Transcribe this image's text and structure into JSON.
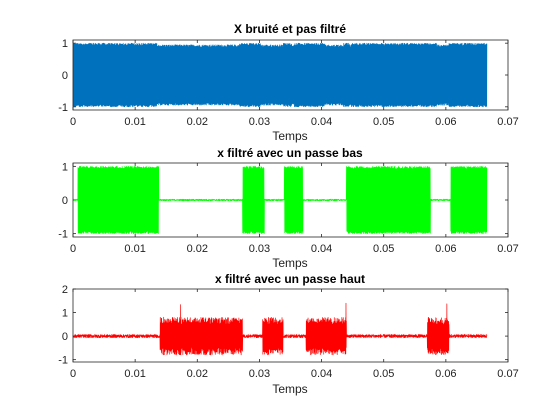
{
  "chart_data": [
    {
      "type": "line",
      "title": "X bruité et pas filtré",
      "xlabel": "Temps",
      "ylabel": "",
      "xlim": [
        0,
        0.07
      ],
      "ylim": [
        -1.1,
        1.1
      ],
      "x_ticks": [
        "0",
        "0.01",
        "0.02",
        "0.03",
        "0.04",
        "0.05",
        "0.06",
        "0.07"
      ],
      "y_ticks": [
        "1",
        "0",
        "-1"
      ],
      "color": "#0072bd",
      "grid": false,
      "series": [
        {
          "signal": "noisy tone bursts across whole duration",
          "x_range": [
            0,
            0.0666
          ],
          "dense_segments": [
            [
              0.0135,
              0.0268
            ],
            [
              0.0302,
              0.0338
            ],
            [
              0.0352,
              0.0356
            ],
            [
              0.0405,
              0.0435
            ],
            [
              0.0445,
              0.0448
            ],
            [
              0.0585,
              0.0605
            ]
          ],
          "amplitude_sparse": 1.0,
          "amplitude_dense": 0.95
        }
      ]
    },
    {
      "type": "line",
      "title": "x filtré avec un passe bas",
      "xlabel": "Temps",
      "ylabel": "",
      "xlim": [
        0,
        0.07
      ],
      "ylim": [
        -1.1,
        1.1
      ],
      "x_ticks": [
        "0",
        "0.01",
        "0.02",
        "0.03",
        "0.04",
        "0.05",
        "0.06",
        "0.07"
      ],
      "y_ticks": [
        "1",
        "0",
        "-1"
      ],
      "color": "#00ff00",
      "grid": false,
      "series": [
        {
          "signal": "low-frequency bursts",
          "x_range": [
            0,
            0.0666
          ],
          "burst_segments": [
            [
              0.0008,
              0.0138
            ],
            [
              0.0273,
              0.0308
            ],
            [
              0.034,
              0.037
            ],
            [
              0.044,
              0.0575
            ],
            [
              0.0608,
              0.0666
            ]
          ],
          "amplitude": 1.0,
          "quiet_level": 0.0
        }
      ]
    },
    {
      "type": "line",
      "title": "x filtré avec un passe haut",
      "xlabel": "Temps",
      "ylabel": "",
      "xlim": [
        0,
        0.07
      ],
      "ylim": [
        -1.1,
        2.0
      ],
      "x_ticks": [
        "0",
        "0.01",
        "0.02",
        "0.03",
        "0.04",
        "0.05",
        "0.06",
        "0.07"
      ],
      "y_ticks": [
        "2",
        "1",
        "0",
        "-1"
      ],
      "color": "#ff0000",
      "grid": false,
      "series": [
        {
          "signal": "high-frequency bursts",
          "x_range": [
            0,
            0.0666
          ],
          "burst_segments": [
            [
              0.014,
              0.0273
            ],
            [
              0.0305,
              0.0338
            ],
            [
              0.0375,
              0.044
            ],
            [
              0.057,
              0.0605
            ]
          ],
          "amplitude": 0.8,
          "peak": 1.55,
          "quiet_noise": 0.07
        }
      ]
    }
  ]
}
